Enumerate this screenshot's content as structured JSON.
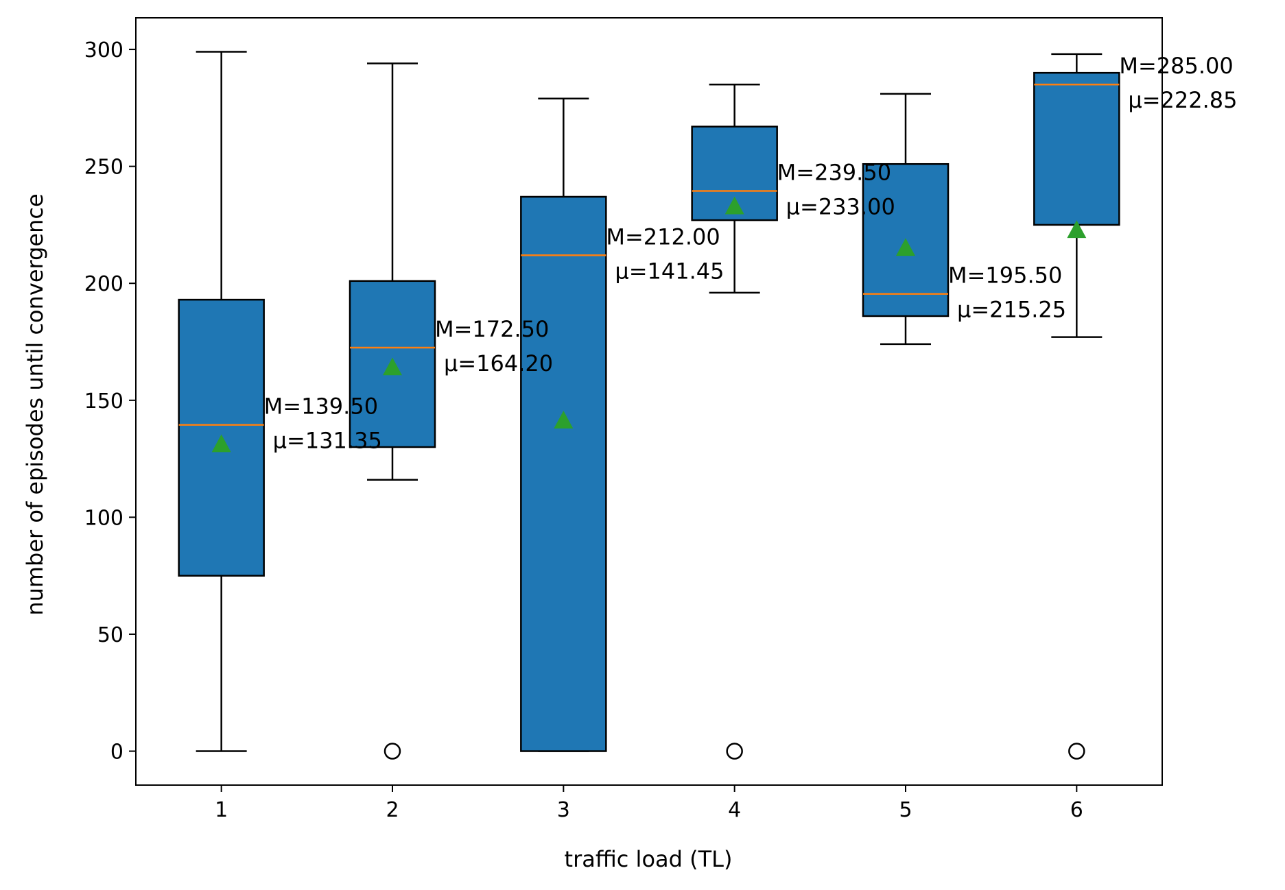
{
  "chart_data": {
    "type": "box",
    "title": "",
    "xlabel": "traffic load (TL)",
    "ylabel": "number of episodes until convergence",
    "ylim": [
      -14.5,
      313.5
    ],
    "xlim": [
      0.5,
      6.5
    ],
    "yticks": [
      0,
      50,
      100,
      150,
      200,
      250,
      300
    ],
    "categories": [
      "1",
      "2",
      "3",
      "4",
      "5",
      "6"
    ],
    "boxes": [
      {
        "x": 1,
        "whislo": 0,
        "q1": 75,
        "med": 139.5,
        "q3": 193,
        "whishi": 299,
        "mean": 131.35,
        "fliers": [],
        "annotation": [
          "M=139.50",
          "μ=131.35"
        ]
      },
      {
        "x": 2,
        "whislo": 116,
        "q1": 130,
        "med": 172.5,
        "q3": 201,
        "whishi": 294,
        "mean": 164.2,
        "fliers": [
          0
        ],
        "annotation": [
          "M=172.50",
          "μ=164.20"
        ]
      },
      {
        "x": 3,
        "whislo": 0,
        "q1": 0,
        "med": 212.0,
        "q3": 237,
        "whishi": 279,
        "mean": 141.45,
        "fliers": [],
        "annotation": [
          "M=212.00",
          "μ=141.45"
        ]
      },
      {
        "x": 4,
        "whislo": 196,
        "q1": 227,
        "med": 239.5,
        "q3": 267,
        "whishi": 285,
        "mean": 233.0,
        "fliers": [
          0
        ],
        "annotation": [
          "M=239.50",
          "μ=233.00"
        ]
      },
      {
        "x": 5,
        "whislo": 174,
        "q1": 186,
        "med": 195.5,
        "q3": 251,
        "whishi": 281,
        "mean": 215.25,
        "fliers": [],
        "annotation": [
          "M=195.50",
          "μ=215.25"
        ]
      },
      {
        "x": 6,
        "whislo": 177,
        "q1": 225,
        "med": 285.0,
        "q3": 290,
        "whishi": 298,
        "mean": 222.85,
        "fliers": [
          0
        ],
        "annotation": [
          "M=285.00",
          "μ=222.85"
        ]
      }
    ],
    "colors": {
      "box_fill": "#1f77b4",
      "median": "#ff7f0e",
      "mean_marker": "#2ca02c",
      "edge": "#000000"
    },
    "grid": false,
    "legend": "none"
  }
}
